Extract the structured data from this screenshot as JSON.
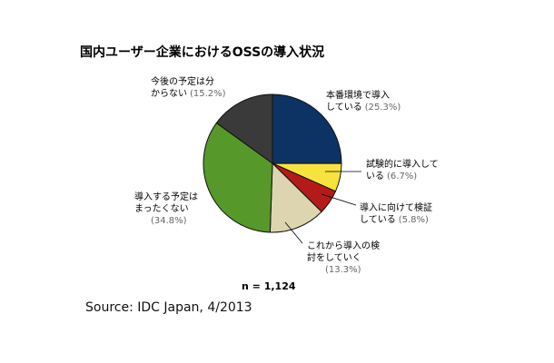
{
  "chart_data": {
    "type": "pie",
    "title": "国内ユーザー企業におけるOSSの導入状況",
    "slices": [
      {
        "label_lines": [
          "本番環境で導入",
          "している"
        ],
        "pct_text": "(25.3%)",
        "value": 25.3,
        "color": "#0d3364"
      },
      {
        "label_lines": [
          "試験的に導入して",
          "いる"
        ],
        "pct_text": "(6.7%)",
        "value": 6.7,
        "color": "#f7e23e"
      },
      {
        "label_lines": [
          "導入に向けて検証",
          "している"
        ],
        "pct_text": "(5.8%)",
        "value": 5.8,
        "color": "#b41a1a"
      },
      {
        "label_lines": [
          "これから導入の検",
          "討をしていく"
        ],
        "pct_text": "(13.3%)",
        "value": 13.3,
        "color": "#dcd5b0"
      },
      {
        "label_lines": [
          "導入する予定は",
          "まったくない"
        ],
        "pct_text": "(34.8%)",
        "value": 34.8,
        "color": "#56982a"
      },
      {
        "label_lines": [
          "今後の予定は分",
          "からない"
        ],
        "pct_text": "(15.2%)",
        "value": 15.2,
        "color": "#3a3a3a"
      }
    ],
    "n_label": "n = 1,124",
    "source": "Source: IDC Japan, 4/2013"
  }
}
